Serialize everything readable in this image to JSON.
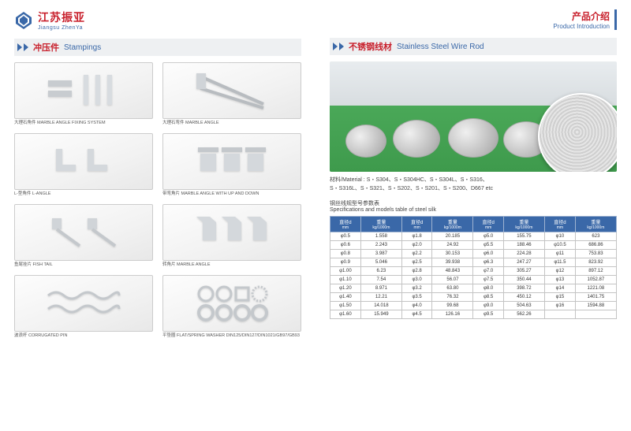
{
  "header": {
    "company_cn": "江苏振亚",
    "company_en": "Jiangsu ZhenYa",
    "right_cn": "产品介绍",
    "right_en": "Product Introduction"
  },
  "left": {
    "sec_cn": "冲压件",
    "sec_en": "Stampings",
    "items": [
      {
        "cap": "大理石角件 MARBLE ANGLE FIXING SYSTEM"
      },
      {
        "cap": "大理石弯件 MARBLE ANGLE"
      },
      {
        "cap": "L-型角件 L-ANGLE"
      },
      {
        "cap": "带弯角片 MARBLE ANGLE WITH UP AND DOWN"
      },
      {
        "cap": "鱼尾挂片 FISH TAIL"
      },
      {
        "cap": "转角片 MARBLE ANGLE"
      },
      {
        "cap": "波浪杆 CORRUGATED PIN"
      },
      {
        "cap": "平垫圈 FLAT/SPRING WASHER DIN125/DIN127/DIN1021/GB97/GB93"
      }
    ]
  },
  "right": {
    "sec_cn": "不锈钢线材",
    "sec_en": "Stainless Steel Wire Rod",
    "material_label": "材料/Material :",
    "material_text1": "S・S304、S・S304HC、S・S304L、S・S316、",
    "material_text2": "S・S316L、S・S321、S・S202、S・S201、S・S200、D667  etc",
    "spec_title_cn": "钢丝线规型号参数表",
    "spec_title_en": "Specifications and models table of steel silk",
    "columns": [
      {
        "cn": "直径d",
        "en": "mm"
      },
      {
        "cn": "重量",
        "en": "kg/1000m"
      },
      {
        "cn": "直径d",
        "en": "mm"
      },
      {
        "cn": "重量",
        "en": "kg/1000m"
      },
      {
        "cn": "直径d",
        "en": "mm"
      },
      {
        "cn": "重量",
        "en": "kg/1000m"
      },
      {
        "cn": "直径d",
        "en": "mm"
      },
      {
        "cn": "重量",
        "en": "kg/1000m"
      }
    ],
    "rows": [
      [
        "φ0.5",
        "1.558",
        "φ1.8",
        "20.185",
        "φ5.0",
        "155.75",
        "φ10",
        "623"
      ],
      [
        "φ0.6",
        "2.243",
        "φ2.0",
        "24.92",
        "φ5.5",
        "188.46",
        "φ10.5",
        "686.86"
      ],
      [
        "φ0.8",
        "3.987",
        "φ2.2",
        "30.153",
        "φ6.0",
        "224.28",
        "φ11",
        "753.83"
      ],
      [
        "φ0.9",
        "5.046",
        "φ2.5",
        "39.938",
        "φ6.3",
        "247.27",
        "φ11.5",
        "823.92"
      ],
      [
        "φ1.00",
        "6.23",
        "φ2.8",
        "48.843",
        "φ7.0",
        "305.27",
        "φ12",
        "897.12"
      ],
      [
        "φ1.10",
        "7.54",
        "φ3.0",
        "56.07",
        "φ7.5",
        "350.44",
        "φ13",
        "1052.87"
      ],
      [
        "φ1.20",
        "8.971",
        "φ3.2",
        "63.80",
        "φ8.0",
        "398.72",
        "φ14",
        "1221.08"
      ],
      [
        "φ1.40",
        "12.21",
        "φ3.5",
        "76.32",
        "φ8.5",
        "450.12",
        "φ15",
        "1401.75"
      ],
      [
        "φ1.50",
        "14.018",
        "φ4.0",
        "99.68",
        "φ9.0",
        "504.63",
        "φ16",
        "1594.88"
      ],
      [
        "φ1.60",
        "15.949",
        "φ4.5",
        "126.16",
        "φ9.5",
        "562.26",
        "",
        ""
      ]
    ]
  },
  "colors": {
    "brand_red": "#c8202c",
    "brand_blue": "#3a68a8",
    "table_header_bg": "#3a68a8",
    "table_border": "#c4c4c4"
  }
}
